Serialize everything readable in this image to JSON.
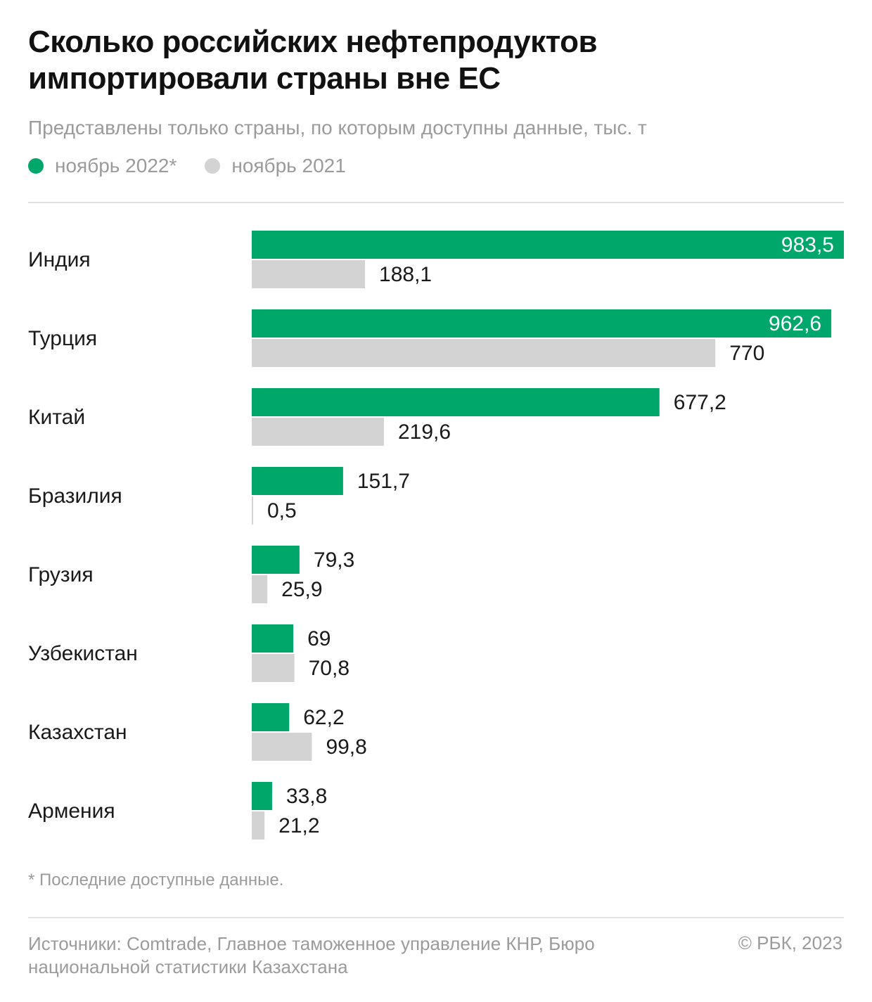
{
  "header": {
    "title": "Сколько российских нефтепродуктов импортировали страны вне ЕС",
    "subtitle": "Представлены только страны, по которым доступны данные, тыс. т"
  },
  "legend": [
    {
      "label": "ноябрь 2022*",
      "color": "#00a76a"
    },
    {
      "label": "ноябрь 2021",
      "color": "#d3d3d3"
    }
  ],
  "chart_data": {
    "type": "bar",
    "orientation": "horizontal",
    "categories": [
      "Индия",
      "Турция",
      "Китай",
      "Бразилия",
      "Грузия",
      "Узбекистан",
      "Казахстан",
      "Армения"
    ],
    "series": [
      {
        "name": "ноябрь 2022*",
        "color": "#00a76a",
        "values": [
          983.5,
          962.6,
          677.2,
          151.7,
          79.3,
          69,
          62.2,
          33.8
        ],
        "labels": [
          "983,5",
          "962,6",
          "677,2",
          "151,7",
          "79,3",
          "69",
          "62,2",
          "33,8"
        ]
      },
      {
        "name": "ноябрь 2021",
        "color": "#d3d3d3",
        "values": [
          188.1,
          770,
          219.6,
          0.5,
          25.9,
          70.8,
          99.8,
          21.2
        ],
        "labels": [
          "188,1",
          "770",
          "219,6",
          "0,5",
          "25,9",
          "70,8",
          "99,8",
          "21,2"
        ]
      }
    ],
    "xlim": [
      0,
      983.5
    ],
    "grid": false,
    "legend": "top-left"
  },
  "footer": {
    "footnote": "* Последние доступные данные.",
    "sources": "Источники: Comtrade, Главное таможенное управление КНР, Бюро национальной статистики Казахстана",
    "copyright": "© РБК, 2023"
  }
}
